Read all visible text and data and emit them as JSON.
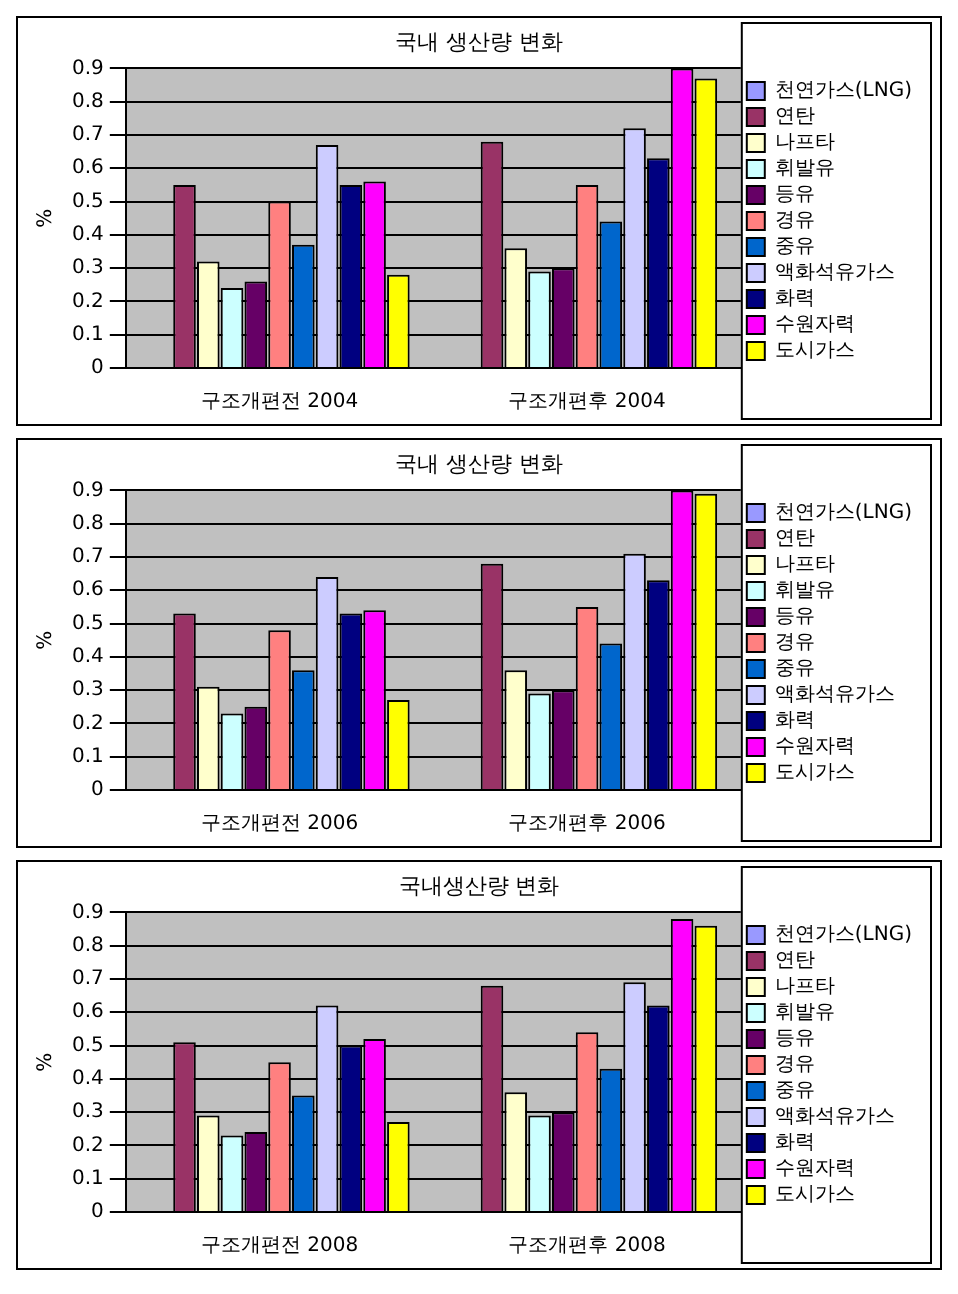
{
  "chart_data": [
    {
      "type": "bar",
      "title": "국내 생산량 변화",
      "ylabel": "%",
      "categories": [
        "구조개편전 2004",
        "구조개편후 2004"
      ],
      "ylim": [
        0,
        0.9
      ],
      "yticks": [
        0,
        0.1,
        0.2,
        0.3,
        0.4,
        0.5,
        0.6,
        0.7,
        0.8,
        0.9
      ],
      "grid": "y",
      "legend": "right",
      "series": [
        {
          "name": "천연가스(LNG)",
          "color": "#9999ff",
          "values": [
            0,
            0
          ]
        },
        {
          "name": "연탄",
          "color": "#993366",
          "values": [
            0.55,
            0.68
          ]
        },
        {
          "name": "나프타",
          "color": "#ffffcc",
          "values": [
            0.32,
            0.36
          ]
        },
        {
          "name": "휘발유",
          "color": "#ccffff",
          "values": [
            0.24,
            0.29
          ]
        },
        {
          "name": "등유",
          "color": "#660066",
          "values": [
            0.26,
            0.3
          ]
        },
        {
          "name": "경유",
          "color": "#ff8080",
          "values": [
            0.5,
            0.55
          ]
        },
        {
          "name": "중유",
          "color": "#0066cc",
          "values": [
            0.37,
            0.44
          ]
        },
        {
          "name": "액화석유가스",
          "color": "#ccccff",
          "values": [
            0.67,
            0.72
          ]
        },
        {
          "name": "화력",
          "color": "#000080",
          "values": [
            0.55,
            0.63
          ]
        },
        {
          "name": "수원자력",
          "color": "#ff00ff",
          "values": [
            0.56,
            0.9
          ]
        },
        {
          "name": "도시가스",
          "color": "#ffff00",
          "values": [
            0.28,
            0.87
          ]
        }
      ]
    },
    {
      "type": "bar",
      "title": "국내 생산량 변화",
      "ylabel": "%",
      "categories": [
        "구조개편전 2006",
        "구조개편후 2006"
      ],
      "ylim": [
        0,
        0.9
      ],
      "yticks": [
        0,
        0.1,
        0.2,
        0.3,
        0.4,
        0.5,
        0.6,
        0.7,
        0.8,
        0.9
      ],
      "grid": "y",
      "legend": "right",
      "series": [
        {
          "name": "천연가스(LNG)",
          "color": "#9999ff",
          "values": [
            0,
            0
          ]
        },
        {
          "name": "연탄",
          "color": "#993366",
          "values": [
            0.53,
            0.68
          ]
        },
        {
          "name": "나프타",
          "color": "#ffffcc",
          "values": [
            0.31,
            0.36
          ]
        },
        {
          "name": "휘발유",
          "color": "#ccffff",
          "values": [
            0.23,
            0.29
          ]
        },
        {
          "name": "등유",
          "color": "#660066",
          "values": [
            0.25,
            0.3
          ]
        },
        {
          "name": "경유",
          "color": "#ff8080",
          "values": [
            0.48,
            0.55
          ]
        },
        {
          "name": "중유",
          "color": "#0066cc",
          "values": [
            0.36,
            0.44
          ]
        },
        {
          "name": "액화석유가스",
          "color": "#ccccff",
          "values": [
            0.64,
            0.71
          ]
        },
        {
          "name": "화력",
          "color": "#000080",
          "values": [
            0.53,
            0.63
          ]
        },
        {
          "name": "수원자력",
          "color": "#ff00ff",
          "values": [
            0.54,
            0.9
          ]
        },
        {
          "name": "도시가스",
          "color": "#ffff00",
          "values": [
            0.27,
            0.89
          ]
        }
      ]
    },
    {
      "type": "bar",
      "title": "국내생산량 변화",
      "ylabel": "%",
      "categories": [
        "구조개편전 2008",
        "구조개편후 2008"
      ],
      "ylim": [
        0,
        0.9
      ],
      "yticks": [
        0,
        0.1,
        0.2,
        0.3,
        0.4,
        0.5,
        0.6,
        0.7,
        0.8,
        0.9
      ],
      "grid": "y",
      "legend": "right",
      "series": [
        {
          "name": "천연가스(LNG)",
          "color": "#9999ff",
          "values": [
            0,
            0
          ]
        },
        {
          "name": "연탄",
          "color": "#993366",
          "values": [
            0.51,
            0.68
          ]
        },
        {
          "name": "나프타",
          "color": "#ffffcc",
          "values": [
            0.29,
            0.36
          ]
        },
        {
          "name": "휘발유",
          "color": "#ccffff",
          "values": [
            0.23,
            0.29
          ]
        },
        {
          "name": "등유",
          "color": "#660066",
          "values": [
            0.24,
            0.3
          ]
        },
        {
          "name": "경유",
          "color": "#ff8080",
          "values": [
            0.45,
            0.54
          ]
        },
        {
          "name": "중유",
          "color": "#0066cc",
          "values": [
            0.35,
            0.43
          ]
        },
        {
          "name": "액화석유가스",
          "color": "#ccccff",
          "values": [
            0.62,
            0.69
          ]
        },
        {
          "name": "화력",
          "color": "#000080",
          "values": [
            0.5,
            0.62
          ]
        },
        {
          "name": "수원자력",
          "color": "#ff00ff",
          "values": [
            0.52,
            0.88
          ]
        },
        {
          "name": "도시가스",
          "color": "#ffff00",
          "values": [
            0.27,
            0.86
          ]
        }
      ]
    }
  ]
}
